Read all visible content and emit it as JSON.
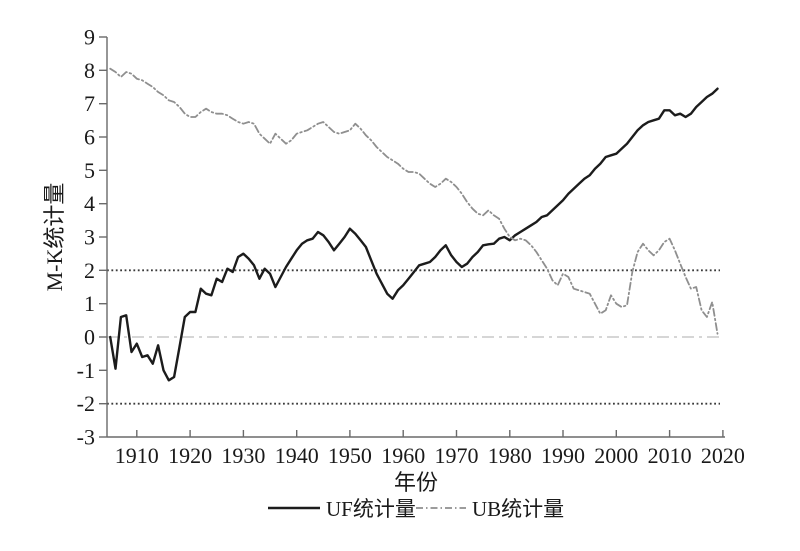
{
  "figure": {
    "background": "#ffffff",
    "plot_border": "L-shaped axes only (left and bottom)"
  },
  "chart_data": {
    "type": "line",
    "title": "",
    "xlabel": "年份",
    "ylabel": "M-K统计量",
    "x_axis_range": [
      1904.4,
      2020.4
    ],
    "y_axis_range": [
      -3,
      9
    ],
    "ylim": [
      -3,
      9
    ],
    "x_ticks": [
      1910,
      1920,
      1930,
      1940,
      1950,
      1960,
      1970,
      1980,
      1990,
      2000,
      2010,
      2020
    ],
    "y_ticks": [
      -3,
      -2,
      -1,
      0,
      1,
      2,
      3,
      4,
      5,
      6,
      7,
      8,
      9
    ],
    "grid": false,
    "legend_position": "bottom-center",
    "x": [
      1905,
      1906,
      1907,
      1908,
      1909,
      1910,
      1911,
      1912,
      1913,
      1914,
      1915,
      1916,
      1917,
      1918,
      1919,
      1920,
      1921,
      1922,
      1923,
      1924,
      1925,
      1926,
      1927,
      1928,
      1929,
      1930,
      1931,
      1932,
      1933,
      1934,
      1935,
      1936,
      1937,
      1938,
      1939,
      1940,
      1941,
      1942,
      1943,
      1944,
      1945,
      1946,
      1947,
      1948,
      1949,
      1950,
      1951,
      1952,
      1953,
      1954,
      1955,
      1956,
      1957,
      1958,
      1959,
      1960,
      1961,
      1962,
      1963,
      1964,
      1965,
      1966,
      1967,
      1968,
      1969,
      1970,
      1971,
      1972,
      1973,
      1974,
      1975,
      1976,
      1977,
      1978,
      1979,
      1980,
      1981,
      1982,
      1983,
      1984,
      1985,
      1986,
      1987,
      1988,
      1989,
      1990,
      1991,
      1992,
      1993,
      1994,
      1995,
      1996,
      1997,
      1998,
      1999,
      2000,
      2001,
      2002,
      2003,
      2004,
      2005,
      2006,
      2007,
      2008,
      2009,
      2010,
      2011,
      2012,
      2013,
      2014,
      2015,
      2016,
      2017,
      2018,
      2019
    ],
    "series": [
      {
        "name": "UF统计量",
        "style": "solid",
        "color": "#1c1c1c",
        "width": 2.4,
        "values": [
          0.0,
          -0.95,
          0.6,
          0.65,
          -0.45,
          -0.2,
          -0.6,
          -0.55,
          -0.8,
          -0.25,
          -1.0,
          -1.3,
          -1.2,
          -0.3,
          0.6,
          0.75,
          0.75,
          1.45,
          1.3,
          1.25,
          1.75,
          1.65,
          2.05,
          1.95,
          2.4,
          2.5,
          2.35,
          2.15,
          1.75,
          2.05,
          1.9,
          1.5,
          1.8,
          2.1,
          2.35,
          2.6,
          2.8,
          2.9,
          2.95,
          3.15,
          3.05,
          2.85,
          2.6,
          2.8,
          3.0,
          3.25,
          3.1,
          2.9,
          2.7,
          2.3,
          1.9,
          1.6,
          1.3,
          1.15,
          1.4,
          1.55,
          1.75,
          1.95,
          2.15,
          2.2,
          2.25,
          2.4,
          2.6,
          2.75,
          2.45,
          2.25,
          2.1,
          2.2,
          2.4,
          2.55,
          2.75,
          2.78,
          2.8,
          2.95,
          3.0,
          2.9,
          3.05,
          3.15,
          3.25,
          3.35,
          3.45,
          3.6,
          3.65,
          3.8,
          3.95,
          4.1,
          4.3,
          4.45,
          4.6,
          4.75,
          4.85,
          5.05,
          5.2,
          5.4,
          5.45,
          5.5,
          5.65,
          5.8,
          6.0,
          6.2,
          6.35,
          6.45,
          6.5,
          6.55,
          6.8,
          6.8,
          6.65,
          6.7,
          6.6,
          6.7,
          6.9,
          7.05,
          7.2,
          7.3,
          7.45
        ]
      },
      {
        "name": "UB统计量",
        "style": "dashdot",
        "color": "#8f8f8f",
        "width": 1.8,
        "values": [
          8.05,
          7.95,
          7.8,
          7.95,
          7.9,
          7.75,
          7.7,
          7.6,
          7.5,
          7.35,
          7.25,
          7.1,
          7.05,
          6.9,
          6.7,
          6.6,
          6.6,
          6.75,
          6.85,
          6.75,
          6.7,
          6.7,
          6.65,
          6.55,
          6.45,
          6.4,
          6.45,
          6.4,
          6.1,
          5.95,
          5.8,
          6.1,
          5.95,
          5.8,
          5.9,
          6.1,
          6.15,
          6.2,
          6.3,
          6.4,
          6.45,
          6.3,
          6.15,
          6.1,
          6.15,
          6.2,
          6.4,
          6.25,
          6.05,
          5.9,
          5.7,
          5.55,
          5.4,
          5.3,
          5.2,
          5.05,
          4.95,
          4.95,
          4.9,
          4.75,
          4.6,
          4.5,
          4.6,
          4.75,
          4.65,
          4.5,
          4.3,
          4.05,
          3.85,
          3.7,
          3.65,
          3.8,
          3.65,
          3.55,
          3.25,
          3.0,
          2.9,
          2.95,
          2.9,
          2.75,
          2.55,
          2.3,
          2.05,
          1.7,
          1.55,
          1.9,
          1.8,
          1.45,
          1.4,
          1.35,
          1.3,
          1.0,
          0.7,
          0.8,
          1.25,
          1.0,
          0.9,
          0.95,
          1.95,
          2.55,
          2.8,
          2.6,
          2.45,
          2.6,
          2.85,
          2.95,
          2.6,
          2.2,
          1.8,
          1.45,
          1.5,
          0.8,
          0.6,
          1.05,
          0.1
        ]
      }
    ],
    "reference_lines": [
      {
        "name": "upper-critical-line",
        "value": 2,
        "style": "dotted",
        "color": "#3a3a3a",
        "width": 1.8
      },
      {
        "name": "zero-line",
        "value": 0,
        "style": "long-dashdot",
        "color": "#c8c8c8",
        "width": 1.4
      },
      {
        "name": "lower-critical-line",
        "value": -2,
        "style": "dotted",
        "color": "#3a3a3a",
        "width": 1.8
      }
    ]
  }
}
